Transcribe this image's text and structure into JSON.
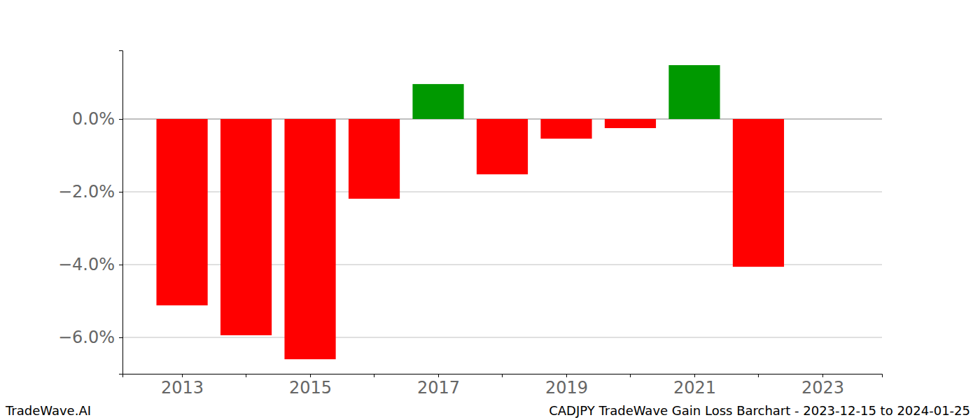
{
  "chart_data": {
    "type": "bar",
    "title": "CADJPY TradeWave Gain Loss Barchart - 2023-12-15 to 2024-01-25",
    "annotations": [
      "TradeWave.AI"
    ],
    "x": [
      2013,
      2014,
      2015,
      2016,
      2017,
      2018,
      2019,
      2020,
      2021,
      2022
    ],
    "values": [
      -5.12,
      -5.94,
      -6.6,
      -2.19,
      0.96,
      -1.52,
      -0.54,
      -0.25,
      1.48,
      -4.06
    ],
    "colors": [
      "#ff0000",
      "#ff0000",
      "#ff0000",
      "#ff0000",
      "#009900",
      "#ff0000",
      "#ff0000",
      "#ff0000",
      "#009900",
      "#ff0000"
    ],
    "xlim": [
      2012.07,
      2023.93
    ],
    "xticks": [
      2013,
      2015,
      2017,
      2019,
      2021,
      2023
    ],
    "x_minor_ticks": [
      2014,
      2016,
      2018,
      2020,
      2022
    ],
    "ylim": [
      -7.0,
      1.885
    ],
    "yticks": [
      {
        "value": -6,
        "label": "−6.0%"
      },
      {
        "value": -4,
        "label": "−4.0%"
      },
      {
        "value": -2,
        "label": "−2.0%"
      },
      {
        "value": 0,
        "label": "0.0%"
      }
    ],
    "grid": true
  }
}
